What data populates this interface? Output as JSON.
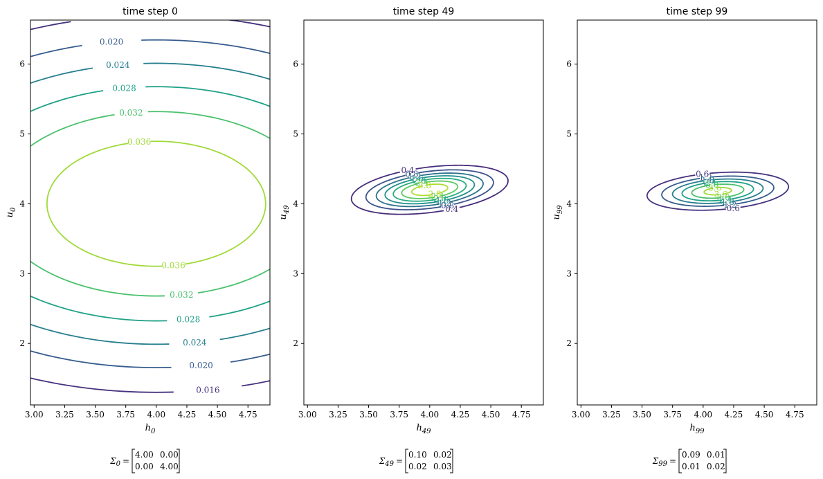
{
  "chart_data": [
    {
      "type": "contour",
      "title": "time step 0",
      "xlabel": "h",
      "xlabel_sub": "0",
      "ylabel": "u",
      "ylabel_sub": "0",
      "xlim": [
        2.97,
        4.93
      ],
      "ylim": [
        1.12,
        6.63
      ],
      "xticks": [
        "3.00",
        "3.25",
        "3.50",
        "3.75",
        "4.00",
        "4.25",
        "4.50",
        "4.75"
      ],
      "yticks": [
        "2",
        "3",
        "4",
        "5",
        "6"
      ],
      "mean": [
        4.0,
        4.0
      ],
      "cov": [
        [
          4.0,
          0.0
        ],
        [
          0.0,
          4.0
        ]
      ],
      "levels": [
        0.016,
        0.02,
        0.024,
        0.028,
        0.032,
        0.036
      ],
      "level_labels": [
        "0.016",
        "0.020",
        "0.024",
        "0.028",
        "0.032",
        "0.036"
      ],
      "colors": [
        "#46327e",
        "#365c8d",
        "#277f8e",
        "#1fa187",
        "#4ac16d",
        "#a0da39"
      ],
      "sigma_label": "Σ",
      "sigma_sub": "0",
      "matrix": [
        [
          "4.00",
          "0.00"
        ],
        [
          "0.00",
          "4.00"
        ]
      ]
    },
    {
      "type": "contour",
      "title": "time step 49",
      "xlabel": "h",
      "xlabel_sub": "49",
      "ylabel": "u",
      "ylabel_sub": "49",
      "xlim": [
        2.97,
        4.93
      ],
      "ylim": [
        1.12,
        6.63
      ],
      "xticks": [
        "3.00",
        "3.25",
        "3.50",
        "3.75",
        "4.00",
        "4.25",
        "4.50",
        "4.75"
      ],
      "yticks": [
        "2",
        "3",
        "4",
        "5",
        "6"
      ],
      "mean": [
        4.0,
        4.2
      ],
      "cov": [
        [
          0.1,
          0.02
        ],
        [
          0.02,
          0.03
        ]
      ],
      "levels": [
        0.4,
        0.8,
        1.2,
        1.6,
        2.0,
        2.4,
        2.8
      ],
      "level_labels": [
        "0.4",
        "0.8",
        "1.2",
        "1.6",
        "2.0",
        "2.4",
        "2.8"
      ],
      "colors": [
        "#472d7b",
        "#3b528b",
        "#2c728e",
        "#21918c",
        "#28ae80",
        "#5ec962",
        "#addc30"
      ],
      "sigma_label": "Σ",
      "sigma_sub": "49",
      "matrix": [
        [
          "0.10",
          "0.02"
        ],
        [
          "0.02",
          "0.03"
        ]
      ]
    },
    {
      "type": "contour",
      "title": "time step 99",
      "xlabel": "h",
      "xlabel_sub": "99",
      "ylabel": "u",
      "ylabel_sub": "99",
      "xlim": [
        2.97,
        4.93
      ],
      "ylim": [
        1.12,
        6.63
      ],
      "xticks": [
        "3.00",
        "3.25",
        "3.50",
        "3.75",
        "4.00",
        "4.25",
        "4.50",
        "4.75"
      ],
      "yticks": [
        "2",
        "3",
        "4",
        "5",
        "6"
      ],
      "mean": [
        4.12,
        4.18
      ],
      "cov": [
        [
          0.09,
          0.01
        ],
        [
          0.01,
          0.02
        ]
      ],
      "levels": [
        0.6,
        1.2,
        1.8,
        2.4,
        3.0,
        3.6
      ],
      "level_labels": [
        "0.6",
        "1.2",
        "1.8",
        "2.4",
        "3.0",
        "3.6"
      ],
      "colors": [
        "#46327e",
        "#365c8d",
        "#277f8e",
        "#1fa187",
        "#4ac16d",
        "#a0da39"
      ],
      "sigma_label": "Σ",
      "sigma_sub": "99",
      "matrix": [
        [
          "0.09",
          "0.01"
        ],
        [
          "0.01",
          "0.02"
        ]
      ]
    }
  ]
}
